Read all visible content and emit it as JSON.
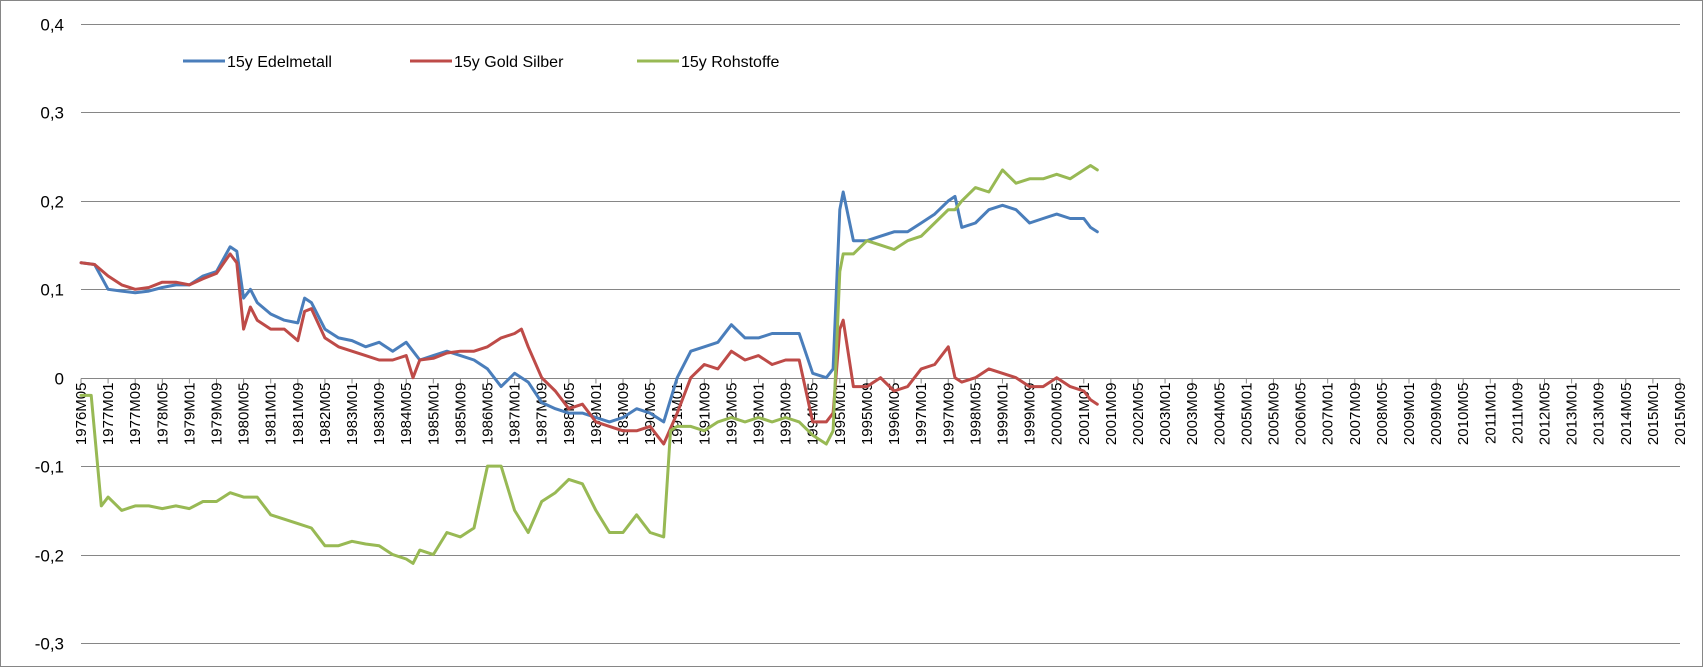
{
  "chart_data": {
    "type": "line",
    "title": "",
    "xlabel": "",
    "ylabel": "",
    "ylim": [
      -0.3,
      0.4
    ],
    "y_ticks": [
      0.4,
      0.3,
      0.2,
      0.1,
      0,
      -0.1,
      -0.2,
      -0.3
    ],
    "y_tick_labels": [
      "0,4",
      "0,3",
      "0,2",
      "0,1",
      "0",
      "-0,1",
      "-0,2",
      "-0,3"
    ],
    "grid": "horizontal",
    "legend_position": "top-left",
    "x_start": "1976M05",
    "x_end": "2015M09",
    "x_tick_labels": [
      "1976M05",
      "1977M01",
      "1977M09",
      "1978M05",
      "1979M01",
      "1979M09",
      "1980M05",
      "1981M01",
      "1981M09",
      "1982M05",
      "1983M01",
      "1983M09",
      "1984M05",
      "1985M01",
      "1985M09",
      "1986M05",
      "1987M01",
      "1987M09",
      "1988M05",
      "1989M01",
      "1989M09",
      "1990M05",
      "1991M01",
      "1991M09",
      "1992M05",
      "1993M01",
      "1993M09",
      "1994M05",
      "1995M01",
      "1995M09",
      "1996M05",
      "1997M01",
      "1997M09",
      "1998M05",
      "1999M01",
      "1999M09",
      "2000M05",
      "2001M01",
      "2001M09",
      "2002M05",
      "2003M01",
      "2003M09",
      "2004M05",
      "2005M01",
      "2005M09",
      "2006M05",
      "2007M01",
      "2007M09",
      "2008M05",
      "2009M01",
      "2009M09",
      "2010M05",
      "2011M01",
      "2011M09",
      "2012M05",
      "2013M01",
      "2013M09",
      "2014M05",
      "2015M01",
      "2015M09"
    ],
    "series": [
      {
        "name": "15y Edelmetall",
        "color": "#4a7ebb",
        "points": [
          [
            "1976M05",
            0.13
          ],
          [
            "1976M09",
            0.128
          ],
          [
            "1977M01",
            0.1
          ],
          [
            "1977M05",
            0.098
          ],
          [
            "1977M09",
            0.096
          ],
          [
            "1978M01",
            0.098
          ],
          [
            "1978M05",
            0.102
          ],
          [
            "1978M09",
            0.105
          ],
          [
            "1979M01",
            0.105
          ],
          [
            "1979M05",
            0.115
          ],
          [
            "1979M09",
            0.12
          ],
          [
            "1980M01",
            0.148
          ],
          [
            "1980M03",
            0.143
          ],
          [
            "1980M05",
            0.09
          ],
          [
            "1980M07",
            0.1
          ],
          [
            "1980M09",
            0.085
          ],
          [
            "1981M01",
            0.072
          ],
          [
            "1981M05",
            0.065
          ],
          [
            "1981M09",
            0.062
          ],
          [
            "1981M11",
            0.09
          ],
          [
            "1982M01",
            0.085
          ],
          [
            "1982M05",
            0.055
          ],
          [
            "1982M09",
            0.045
          ],
          [
            "1983M01",
            0.042
          ],
          [
            "1983M05",
            0.035
          ],
          [
            "1983M09",
            0.04
          ],
          [
            "1984M01",
            0.03
          ],
          [
            "1984M05",
            0.04
          ],
          [
            "1984M09",
            0.02
          ],
          [
            "1985M01",
            0.025
          ],
          [
            "1985M05",
            0.03
          ],
          [
            "1985M09",
            0.025
          ],
          [
            "1986M01",
            0.02
          ],
          [
            "1986M05",
            0.01
          ],
          [
            "1986M09",
            -0.01
          ],
          [
            "1987M01",
            0.005
          ],
          [
            "1987M05",
            -0.005
          ],
          [
            "1987M09",
            -0.028
          ],
          [
            "1988M01",
            -0.035
          ],
          [
            "1988M05",
            -0.04
          ],
          [
            "1988M09",
            -0.04
          ],
          [
            "1989M01",
            -0.045
          ],
          [
            "1989M05",
            -0.05
          ],
          [
            "1989M09",
            -0.045
          ],
          [
            "1990M01",
            -0.035
          ],
          [
            "1990M05",
            -0.04
          ],
          [
            "1990M09",
            -0.05
          ],
          [
            "1991M01",
            0.0
          ],
          [
            "1991M05",
            0.03
          ],
          [
            "1991M09",
            0.035
          ],
          [
            "1992M01",
            0.04
          ],
          [
            "1992M05",
            0.06
          ],
          [
            "1992M09",
            0.045
          ],
          [
            "1993M01",
            0.045
          ],
          [
            "1993M05",
            0.05
          ],
          [
            "1993M09",
            0.05
          ],
          [
            "1994M01",
            0.05
          ],
          [
            "1994M05",
            0.005
          ],
          [
            "1994M09",
            0.0
          ],
          [
            "1994M11",
            0.01
          ],
          [
            "1995M01",
            0.19
          ],
          [
            "1995M02",
            0.21
          ],
          [
            "1995M05",
            0.155
          ],
          [
            "1995M09",
            0.155
          ],
          [
            "1996M01",
            0.16
          ],
          [
            "1996M05",
            0.165
          ],
          [
            "1996M09",
            0.165
          ],
          [
            "1997M01",
            0.175
          ],
          [
            "1997M05",
            0.185
          ],
          [
            "1997M09",
            0.2
          ],
          [
            "1997M11",
            0.205
          ],
          [
            "1998M01",
            0.17
          ],
          [
            "1998M05",
            0.175
          ],
          [
            "1998M09",
            0.19
          ],
          [
            "1999M01",
            0.195
          ],
          [
            "1999M05",
            0.19
          ],
          [
            "1999M09",
            0.175
          ],
          [
            "2000M01",
            0.18
          ],
          [
            "2000M05",
            0.185
          ],
          [
            "2000M09",
            0.18
          ],
          [
            "2001M01",
            0.18
          ],
          [
            "2001M03",
            0.17
          ],
          [
            "2001M05",
            0.165
          ]
        ]
      },
      {
        "name": "15y Gold Silber",
        "color": "#be4b48",
        "points": [
          [
            "1976M05",
            0.13
          ],
          [
            "1976M09",
            0.128
          ],
          [
            "1977M01",
            0.115
          ],
          [
            "1977M05",
            0.105
          ],
          [
            "1977M09",
            0.1
          ],
          [
            "1978M01",
            0.102
          ],
          [
            "1978M05",
            0.108
          ],
          [
            "1978M09",
            0.108
          ],
          [
            "1979M01",
            0.105
          ],
          [
            "1979M05",
            0.112
          ],
          [
            "1979M09",
            0.118
          ],
          [
            "1980M01",
            0.14
          ],
          [
            "1980M03",
            0.13
          ],
          [
            "1980M05",
            0.055
          ],
          [
            "1980M07",
            0.08
          ],
          [
            "1980M09",
            0.065
          ],
          [
            "1981M01",
            0.055
          ],
          [
            "1981M05",
            0.055
          ],
          [
            "1981M09",
            0.042
          ],
          [
            "1981M11",
            0.075
          ],
          [
            "1982M01",
            0.078
          ],
          [
            "1982M05",
            0.045
          ],
          [
            "1982M09",
            0.035
          ],
          [
            "1983M01",
            0.03
          ],
          [
            "1983M05",
            0.025
          ],
          [
            "1983M09",
            0.02
          ],
          [
            "1984M01",
            0.02
          ],
          [
            "1984M05",
            0.025
          ],
          [
            "1984M07",
            0.0
          ],
          [
            "1984M09",
            0.02
          ],
          [
            "1985M01",
            0.022
          ],
          [
            "1985M05",
            0.028
          ],
          [
            "1985M09",
            0.03
          ],
          [
            "1986M01",
            0.03
          ],
          [
            "1986M05",
            0.035
          ],
          [
            "1986M09",
            0.045
          ],
          [
            "1987M01",
            0.05
          ],
          [
            "1987M03",
            0.055
          ],
          [
            "1987M05",
            0.035
          ],
          [
            "1987M09",
            0.0
          ],
          [
            "1988M01",
            -0.015
          ],
          [
            "1988M05",
            -0.035
          ],
          [
            "1988M09",
            -0.03
          ],
          [
            "1989M01",
            -0.05
          ],
          [
            "1989M05",
            -0.055
          ],
          [
            "1989M09",
            -0.06
          ],
          [
            "1990M01",
            -0.06
          ],
          [
            "1990M05",
            -0.055
          ],
          [
            "1990M09",
            -0.075
          ],
          [
            "1991M01",
            -0.04
          ],
          [
            "1991M05",
            0.0
          ],
          [
            "1991M09",
            0.015
          ],
          [
            "1992M01",
            0.01
          ],
          [
            "1992M05",
            0.03
          ],
          [
            "1992M09",
            0.02
          ],
          [
            "1993M01",
            0.025
          ],
          [
            "1993M05",
            0.015
          ],
          [
            "1993M09",
            0.02
          ],
          [
            "1994M01",
            0.02
          ],
          [
            "1994M05",
            -0.05
          ],
          [
            "1994M09",
            -0.05
          ],
          [
            "1994M11",
            -0.04
          ],
          [
            "1995M01",
            0.055
          ],
          [
            "1995M02",
            0.065
          ],
          [
            "1995M05",
            -0.01
          ],
          [
            "1995M09",
            -0.01
          ],
          [
            "1996M01",
            0.0
          ],
          [
            "1996M05",
            -0.015
          ],
          [
            "1996M09",
            -0.01
          ],
          [
            "1997M01",
            0.01
          ],
          [
            "1997M05",
            0.015
          ],
          [
            "1997M09",
            0.035
          ],
          [
            "1997M11",
            0.0
          ],
          [
            "1998M01",
            -0.005
          ],
          [
            "1998M05",
            0.0
          ],
          [
            "1998M09",
            0.01
          ],
          [
            "1999M01",
            0.005
          ],
          [
            "1999M05",
            0.0
          ],
          [
            "1999M09",
            -0.01
          ],
          [
            "2000M01",
            -0.01
          ],
          [
            "2000M05",
            0.0
          ],
          [
            "2000M09",
            -0.01
          ],
          [
            "2001M01",
            -0.015
          ],
          [
            "2001M03",
            -0.025
          ],
          [
            "2001M05",
            -0.03
          ]
        ]
      },
      {
        "name": "15y Rohstoffe",
        "color": "#98b954",
        "points": [
          [
            "1976M05",
            -0.02
          ],
          [
            "1976M08",
            -0.02
          ],
          [
            "1976M11",
            -0.145
          ],
          [
            "1977M01",
            -0.135
          ],
          [
            "1977M05",
            -0.15
          ],
          [
            "1977M09",
            -0.145
          ],
          [
            "1978M01",
            -0.145
          ],
          [
            "1978M05",
            -0.148
          ],
          [
            "1978M09",
            -0.145
          ],
          [
            "1979M01",
            -0.148
          ],
          [
            "1979M05",
            -0.14
          ],
          [
            "1979M09",
            -0.14
          ],
          [
            "1980M01",
            -0.13
          ],
          [
            "1980M05",
            -0.135
          ],
          [
            "1980M09",
            -0.135
          ],
          [
            "1981M01",
            -0.155
          ],
          [
            "1981M05",
            -0.16
          ],
          [
            "1981M09",
            -0.165
          ],
          [
            "1982M01",
            -0.17
          ],
          [
            "1982M05",
            -0.19
          ],
          [
            "1982M09",
            -0.19
          ],
          [
            "1983M01",
            -0.185
          ],
          [
            "1983M05",
            -0.188
          ],
          [
            "1983M09",
            -0.19
          ],
          [
            "1984M01",
            -0.2
          ],
          [
            "1984M05",
            -0.205
          ],
          [
            "1984M07",
            -0.21
          ],
          [
            "1984M09",
            -0.195
          ],
          [
            "1985M01",
            -0.2
          ],
          [
            "1985M05",
            -0.175
          ],
          [
            "1985M09",
            -0.18
          ],
          [
            "1986M01",
            -0.17
          ],
          [
            "1986M05",
            -0.1
          ],
          [
            "1986M09",
            -0.1
          ],
          [
            "1987M01",
            -0.15
          ],
          [
            "1987M05",
            -0.175
          ],
          [
            "1987M09",
            -0.14
          ],
          [
            "1988M01",
            -0.13
          ],
          [
            "1988M05",
            -0.115
          ],
          [
            "1988M09",
            -0.12
          ],
          [
            "1989M01",
            -0.15
          ],
          [
            "1989M05",
            -0.175
          ],
          [
            "1989M09",
            -0.175
          ],
          [
            "1990M01",
            -0.155
          ],
          [
            "1990M05",
            -0.175
          ],
          [
            "1990M09",
            -0.18
          ],
          [
            "1990M11",
            -0.06
          ],
          [
            "1991M01",
            -0.055
          ],
          [
            "1991M05",
            -0.055
          ],
          [
            "1991M09",
            -0.06
          ],
          [
            "1992M01",
            -0.05
          ],
          [
            "1992M05",
            -0.045
          ],
          [
            "1992M09",
            -0.05
          ],
          [
            "1993M01",
            -0.045
          ],
          [
            "1993M05",
            -0.05
          ],
          [
            "1993M09",
            -0.045
          ],
          [
            "1994M01",
            -0.05
          ],
          [
            "1994M05",
            -0.065
          ],
          [
            "1994M09",
            -0.075
          ],
          [
            "1994M11",
            -0.06
          ],
          [
            "1995M01",
            0.12
          ],
          [
            "1995M02",
            0.14
          ],
          [
            "1995M05",
            0.14
          ],
          [
            "1995M09",
            0.155
          ],
          [
            "1996M01",
            0.15
          ],
          [
            "1996M05",
            0.145
          ],
          [
            "1996M09",
            0.155
          ],
          [
            "1997M01",
            0.16
          ],
          [
            "1997M05",
            0.175
          ],
          [
            "1997M09",
            0.19
          ],
          [
            "1997M11",
            0.19
          ],
          [
            "1998M01",
            0.2
          ],
          [
            "1998M05",
            0.215
          ],
          [
            "1998M09",
            0.21
          ],
          [
            "1999M01",
            0.235
          ],
          [
            "1999M05",
            0.22
          ],
          [
            "1999M09",
            0.225
          ],
          [
            "2000M01",
            0.225
          ],
          [
            "2000M05",
            0.23
          ],
          [
            "2000M09",
            0.225
          ],
          [
            "2001M01",
            0.235
          ],
          [
            "2001M03",
            0.24
          ],
          [
            "2001M05",
            0.235
          ]
        ]
      }
    ]
  }
}
